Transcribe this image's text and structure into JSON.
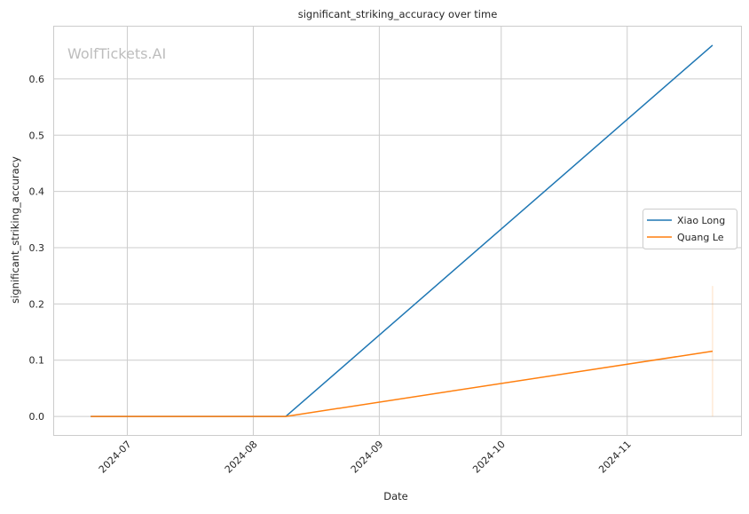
{
  "watermark": "WolfTickets.AI",
  "chart_data": {
    "type": "line",
    "title": "significant_striking_accuracy over time",
    "xlabel": "Date",
    "ylabel": "significant_striking_accuracy",
    "x_ticks": [
      "2024-07-01",
      "2024-08-01",
      "2024-09-01",
      "2024-10-01",
      "2024-11-01"
    ],
    "x_tick_labels": [
      "2024-07",
      "2024-08",
      "2024-09",
      "2024-10",
      "2024-11"
    ],
    "y_ticks": [
      0.0,
      0.1,
      0.2,
      0.3,
      0.4,
      0.5,
      0.6
    ],
    "y_tick_labels": [
      "0.0",
      "0.1",
      "0.2",
      "0.3",
      "0.4",
      "0.5",
      "0.6"
    ],
    "xlim": [
      "2024-06-13",
      "2024-11-29"
    ],
    "ylim": [
      -0.033,
      0.693
    ],
    "grid": true,
    "legend_position": "center-right",
    "series": [
      {
        "name": "Xiao Long",
        "color": "#1f77b4",
        "points": [
          {
            "x": "2024-06-22",
            "y": 0.0
          },
          {
            "x": "2024-08-09",
            "y": 0.0
          },
          {
            "x": "2024-11-22",
            "y": 0.66
          }
        ]
      },
      {
        "name": "Quang Le",
        "color": "#ff7f0e",
        "points": [
          {
            "x": "2024-06-22",
            "y": 0.0
          },
          {
            "x": "2024-08-09",
            "y": 0.0
          },
          {
            "x": "2024-11-22",
            "y": 0.116
          }
        ],
        "error_bar": {
          "x": "2024-11-22",
          "low": 0.0,
          "high": 0.232
        }
      }
    ]
  }
}
